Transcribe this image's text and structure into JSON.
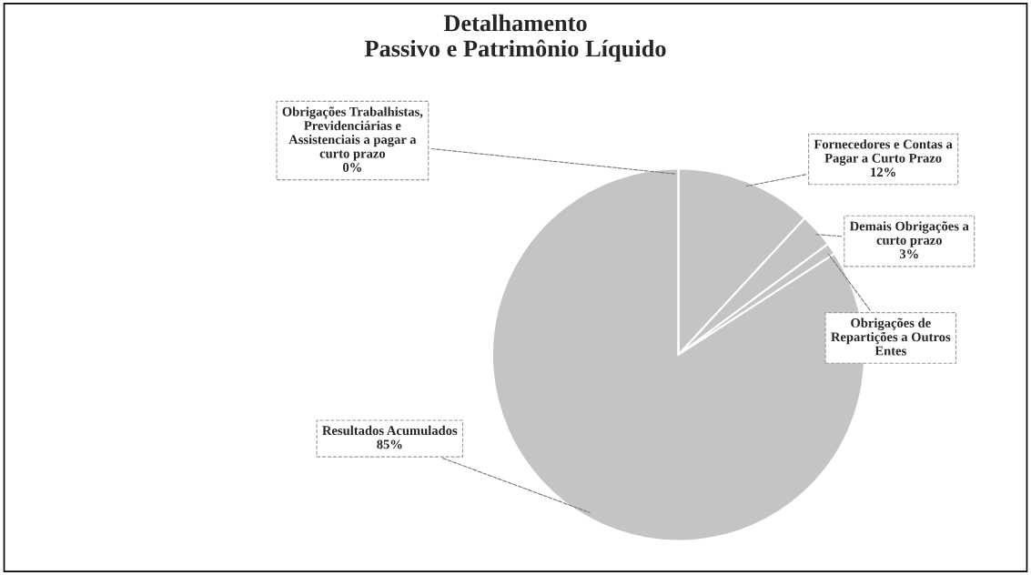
{
  "chart_data": {
    "type": "pie",
    "title": "Detalhamento\nPassivo e Patrimônio Líquido",
    "categories": [
      "Fornecedores e Contas a Pagar a Curto Prazo",
      "Demais Obrigações a curto prazo",
      "Obrigações de Repartições a Outros Entes",
      "Resultados Acumulados",
      "Obrigações Trabalhistas, Previdenciárias e Assistenciais a pagar a curto prazo"
    ],
    "values": [
      12,
      3,
      1,
      85,
      0
    ],
    "value_labels": [
      "12%",
      "3%",
      null,
      "85%",
      "0%"
    ],
    "colors": [
      "#c4c4c4",
      "#c4c4c4",
      "#c4c4c4",
      "#c4c4c4",
      "#c4c4c4"
    ],
    "legend": false
  }
}
